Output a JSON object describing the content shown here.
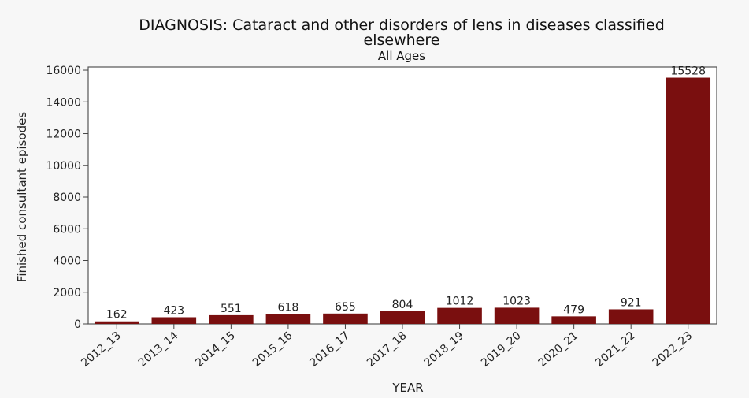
{
  "chart_data": {
    "type": "bar",
    "title": "DIAGNOSIS: Cataract and other disorders of lens in diseases classified elsewhere",
    "title_lines": [
      "DIAGNOSIS: Cataract and other disorders of lens in diseases classified",
      "elsewhere"
    ],
    "subtitle": "All Ages",
    "xlabel": "YEAR",
    "ylabel": "Finished consultant episodes",
    "categories": [
      "2012_13",
      "2013_14",
      "2014_15",
      "2015_16",
      "2016_17",
      "2017_18",
      "2018_19",
      "2019_20",
      "2020_21",
      "2021_22",
      "2022_23"
    ],
    "values": [
      162,
      423,
      551,
      618,
      655,
      804,
      1012,
      1023,
      479,
      921,
      15528
    ],
    "data_labels": [
      "162",
      "423",
      "551",
      "618",
      "655",
      "804",
      "1012",
      "1023",
      "479",
      "921",
      "15528"
    ],
    "ylim": [
      0,
      16200
    ],
    "yticks": [
      0,
      2000,
      4000,
      6000,
      8000,
      10000,
      12000,
      14000,
      16000
    ],
    "ytick_labels": [
      "0",
      "2000",
      "4000",
      "6000",
      "8000",
      "10000",
      "12000",
      "14000",
      "16000"
    ],
    "bar_color": "#7a0f0f",
    "grid": false,
    "legend": "none"
  }
}
